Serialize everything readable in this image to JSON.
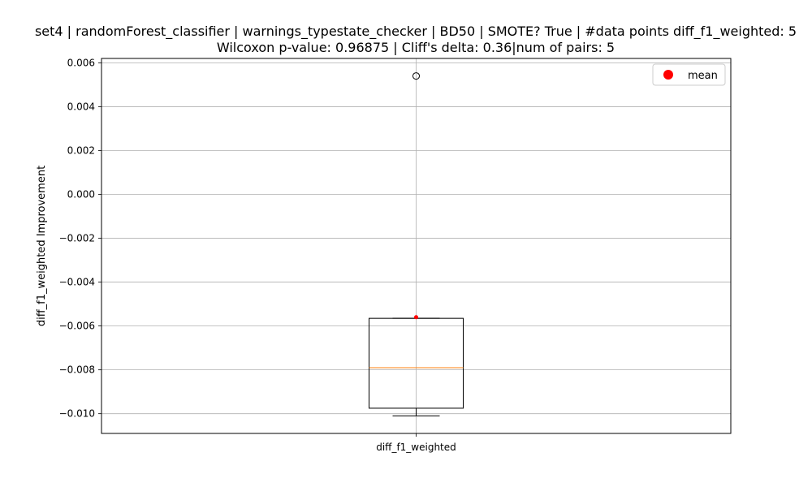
{
  "chart_data": {
    "type": "box",
    "title_line1": "set4 | randomForest_classifier | warnings_typestate_checker | BD50 | SMOTE? True | #data points diff_f1_weighted: 5",
    "title_line2": "Wilcoxon p-value: 0.96875 | Cliff's delta: 0.36|num of pairs: 5",
    "xlabel": "",
    "ylabel": "diff_f1_weighted Improvement",
    "categories": [
      "diff_f1_weighted"
    ],
    "ylim": [
      -0.0109,
      0.0062
    ],
    "yticks": [
      -0.01,
      -0.008,
      -0.006,
      -0.004,
      -0.002,
      0.0,
      0.002,
      0.004,
      0.006
    ],
    "ytick_labels": [
      "−0.010",
      "−0.008",
      "−0.006",
      "−0.004",
      "−0.002",
      "0.000",
      "0.002",
      "0.004",
      "0.006"
    ],
    "grid": true,
    "legend": {
      "placement": "top-right",
      "entries": [
        {
          "label": "mean",
          "color": "#ff0000",
          "marker": "circle"
        }
      ]
    },
    "box": {
      "whisker_low": -0.0101,
      "q1": -0.00975,
      "median": -0.0079,
      "q3": -0.00565,
      "whisker_high": -0.00565,
      "mean": -0.0056,
      "outliers": [
        0.0054
      ]
    },
    "colors": {
      "median": "#ff7f0e",
      "mean": "#ff0000",
      "grid": "#b0b0b0",
      "box": "#000000"
    }
  }
}
